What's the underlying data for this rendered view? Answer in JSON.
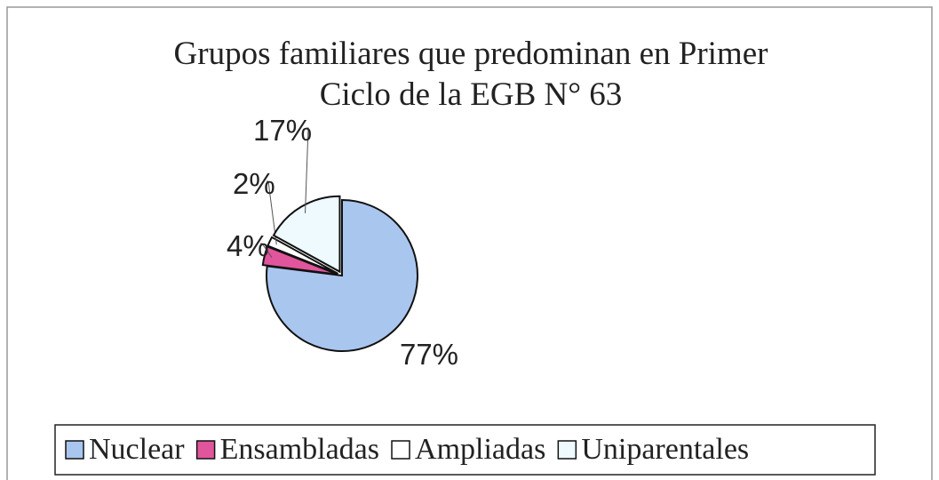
{
  "chart_data": {
    "type": "pie",
    "title": [
      "Grupos familiares que predominan en Primer",
      "Ciclo de la EGB N° 63"
    ],
    "categories": [
      "Nuclear",
      "Ensambladas",
      "Ampliadas",
      "Uniparentales"
    ],
    "values": [
      77,
      4,
      2,
      17
    ],
    "value_labels": [
      "77%",
      "4%",
      "2%",
      "17%"
    ],
    "colors": [
      "#a9c6ee",
      "#e0559c",
      "#ffffff",
      "#eefaff"
    ],
    "legend": "bottom"
  }
}
